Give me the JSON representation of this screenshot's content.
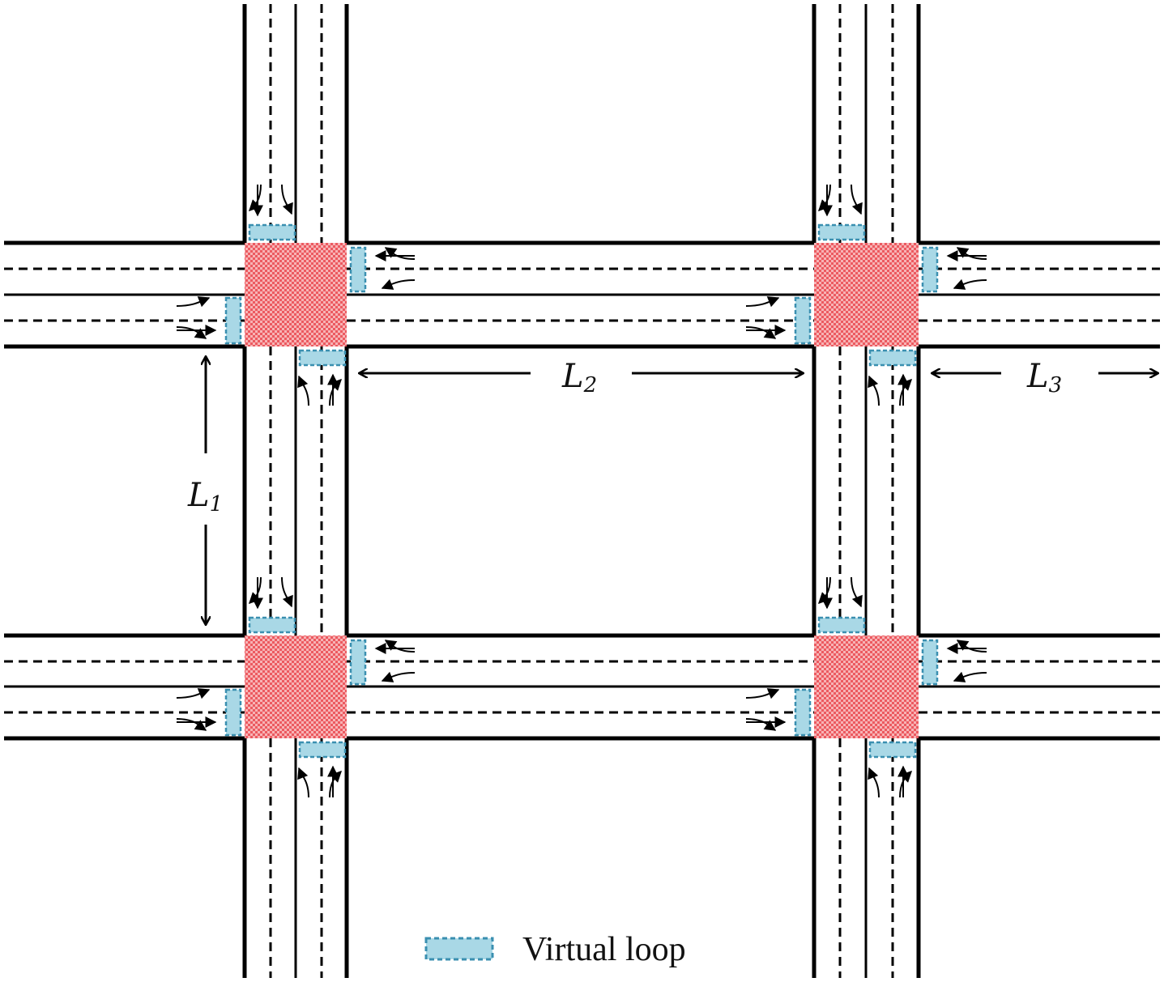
{
  "diagram": {
    "colors": {
      "road_edge": "#000000",
      "lane_dash": "#000000",
      "intersection": "#ef6a6f",
      "loop_fill": "#a9d8e6",
      "loop_border": "#3a8fb0",
      "background": "#ffffff"
    },
    "labels": {
      "l1_main": "L",
      "l1_sub": "1",
      "l2_main": "L",
      "l2_sub": "2",
      "l3_main": "L",
      "l3_sub": "3"
    },
    "legend": {
      "text": "Virtual loop",
      "icon": "virtual-loop-icon"
    },
    "intersections": [
      "top-left",
      "top-right",
      "bottom-left",
      "bottom-right"
    ]
  }
}
